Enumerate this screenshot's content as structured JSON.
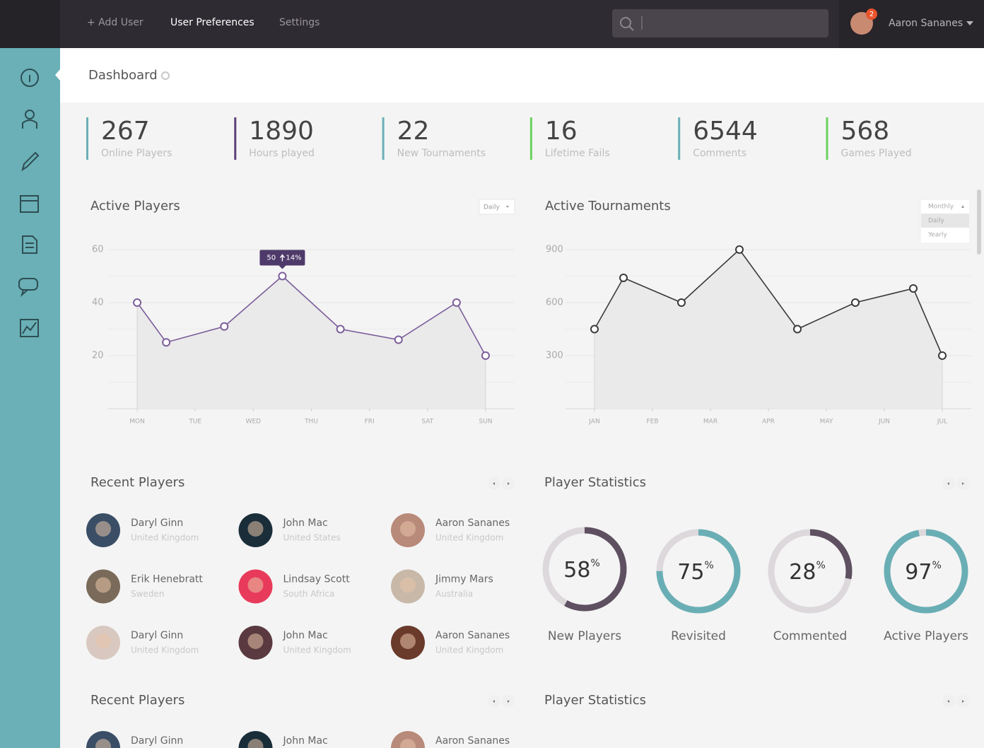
{
  "nav": {
    "items": [
      "+ Add User",
      "User Preferences",
      "Settings"
    ],
    "user": "Aaron Sananes",
    "badge": "2"
  },
  "page_title": "Dashboard",
  "stats": [
    {
      "value": 267,
      "label": "Online Players",
      "color": "#6ab0b6"
    },
    {
      "value": 1890,
      "label": "Hours played",
      "color": "#5e3f78"
    },
    {
      "value": 22,
      "label": "New Tournaments",
      "color": "#6ab0b6"
    },
    {
      "value": 16,
      "label": "Lifetime Fails",
      "color": "#6cd160"
    },
    {
      "value": 6544,
      "label": "Comments",
      "color": "#6ab0b6"
    },
    {
      "value": 568,
      "label": "Games Played",
      "color": "#6cd160"
    }
  ],
  "chart_data": [
    {
      "type": "line",
      "title": "Active Players",
      "filter": [
        "Daily"
      ],
      "x": [
        0,
        0.5,
        1.5,
        2.5,
        3.5,
        4.5,
        5.5,
        6
      ],
      "values": [
        40,
        25,
        31,
        50,
        30,
        26,
        40,
        20
      ],
      "xticks": [
        {
          "value": 0,
          "label": "MON"
        },
        {
          "value": 1,
          "label": "TUE"
        },
        {
          "value": 2,
          "label": "WED"
        },
        {
          "value": 3,
          "label": "THU"
        },
        {
          "value": 4,
          "label": "FRI"
        },
        {
          "value": 5,
          "label": "SAT"
        },
        {
          "value": 6,
          "label": "SUN"
        }
      ],
      "xlim": [
        -0.5,
        6.5
      ],
      "ylim": [
        0,
        60
      ],
      "yticks": [
        20,
        40,
        60
      ],
      "grid": true,
      "color": "#7b5e9a",
      "annotation": {
        "text": "50",
        "change": "14%"
      }
    },
    {
      "type": "line",
      "title": "Active Tournaments",
      "filter": [
        "Monthly",
        "Daily",
        "Yearly"
      ],
      "x": [
        0,
        0.5,
        1.5,
        2.5,
        3.5,
        4.5,
        5.5,
        6
      ],
      "values": [
        450,
        740,
        600,
        900,
        450,
        600,
        680,
        300
      ],
      "xticks": [
        {
          "value": 0,
          "label": "JAN"
        },
        {
          "value": 1,
          "label": "FEB"
        },
        {
          "value": 2,
          "label": "MAR"
        },
        {
          "value": 3,
          "label": "APR"
        },
        {
          "value": 4,
          "label": "MAY"
        },
        {
          "value": 5,
          "label": "JUN"
        },
        {
          "value": 6,
          "label": "JUL"
        }
      ],
      "xlim": [
        -0.5,
        6.5
      ],
      "ylim": [
        0,
        900
      ],
      "yticks": [
        300,
        600,
        900
      ],
      "grid": true,
      "color": "#3a3a3a"
    }
  ],
  "recent_players": {
    "title": "Recent Players",
    "players": [
      {
        "name": "Daryl Ginn",
        "country": "United Kingdom"
      },
      {
        "name": "John Mac",
        "country": "United States"
      },
      {
        "name": "Aaron Sananes",
        "country": "United Kingdom"
      },
      {
        "name": "Erik Henebratt",
        "country": "Sweden"
      },
      {
        "name": "Lindsay Scott",
        "country": "South Africa"
      },
      {
        "name": "Jimmy Mars",
        "country": "Australia"
      },
      {
        "name": "Daryl Ginn",
        "country": "United Kingdom"
      },
      {
        "name": "John Mac",
        "country": "United Kingdom"
      },
      {
        "name": "Aaron Sananes",
        "country": "United Kingdom"
      }
    ]
  },
  "player_statistics": {
    "title": "Player Statistics",
    "unit": "%",
    "items": [
      {
        "label": "New Players",
        "value": 58,
        "color": "#5e5060"
      },
      {
        "label": "Revisited",
        "value": 75,
        "color": "#6aaeb5"
      },
      {
        "label": "Commented",
        "value": 28,
        "color": "#5e5060"
      },
      {
        "label": "Active Players",
        "value": 97,
        "color": "#6aaeb5"
      }
    ]
  },
  "recent_players_2": {
    "title": "Recent Players",
    "players": [
      {
        "name": "Daryl Ginn"
      },
      {
        "name": "John Mac"
      },
      {
        "name": "Aaron Sananes"
      }
    ]
  },
  "player_statistics_2": {
    "title": "Player Statistics"
  }
}
